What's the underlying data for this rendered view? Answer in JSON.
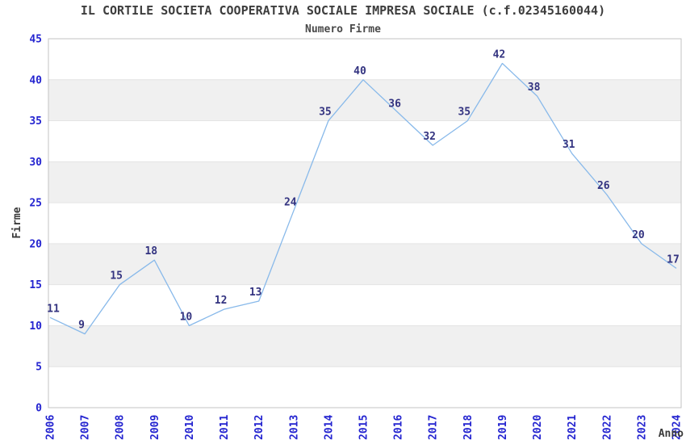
{
  "chart_data": {
    "type": "line",
    "title": "IL CORTILE SOCIETA COOPERATIVA SOCIALE IMPRESA SOCIALE (c.f.02345160044)",
    "subtitle": "Numero Firme",
    "xlabel": "Anno",
    "ylabel": "Firme",
    "categories": [
      "2006",
      "2007",
      "2008",
      "2009",
      "2010",
      "2011",
      "2012",
      "2013",
      "2014",
      "2015",
      "2016",
      "2017",
      "2018",
      "2019",
      "2020",
      "2021",
      "2022",
      "2023",
      "2024"
    ],
    "values": [
      11,
      9,
      15,
      18,
      10,
      12,
      13,
      24,
      35,
      40,
      36,
      32,
      35,
      42,
      38,
      31,
      26,
      20,
      17
    ],
    "ylim": [
      0,
      45
    ],
    "ytick_step": 5,
    "grid": "horizontal-alternating-bands",
    "legend": "none",
    "data_labels_shown": true,
    "colors": {
      "line": "#88b9ea",
      "tick_label": "#2424d0",
      "data_label": "#333380",
      "band_alt": "#f0f0f0",
      "band_main": "#ffffff",
      "plot_border": "#c3c3c3",
      "gridline": "#e4e4e4",
      "title": "#3d3d3d",
      "subtitle": "#4a4a4a",
      "axis_title": "#3a3a3a",
      "background": "#ffffff"
    }
  }
}
